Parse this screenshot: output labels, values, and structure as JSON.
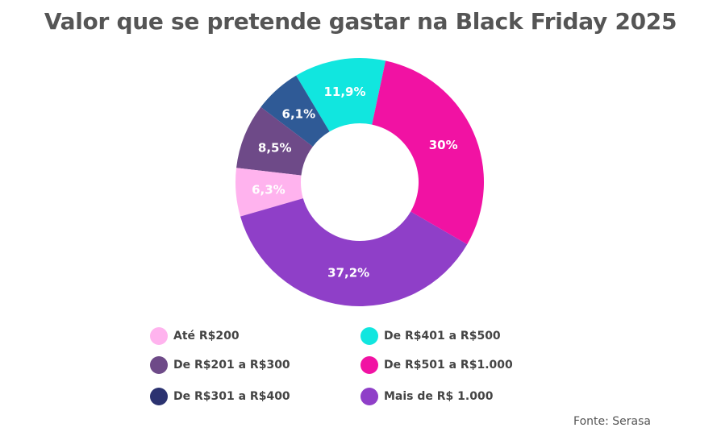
{
  "chart_data": {
    "type": "pie",
    "subtype": "donut",
    "title": "Valor que se pretende gastar na Black Friday 2025",
    "categories": [
      "Até R$200",
      "De R$201 a R$300",
      "De R$301 a R$400",
      "De R$401 a R$500",
      "De R$501 a R$1.000",
      "Mais de R$ 1.000"
    ],
    "values": [
      6.3,
      8.5,
      6.1,
      11.9,
      30,
      37.2
    ],
    "data_labels": [
      "6,3%",
      "8,5%",
      "6,1%",
      "11,9%",
      "30%",
      "37,2%"
    ],
    "colors": [
      "#ffb3ee",
      "#6e4a88",
      "#2f5a96",
      "#11e6df",
      "#f112a3",
      "#8f3fc8"
    ],
    "label_colors": [
      "#ffffff",
      "#ffffff",
      "#ffffff",
      "#ffffff",
      "#ffffff",
      "#ffffff"
    ],
    "legend": {
      "placement": "bottom",
      "items": [
        {
          "label": "Até R$200",
          "color": "#ffb3ee"
        },
        {
          "label": "De R$401 a R$500",
          "color": "#11e6df"
        },
        {
          "label": "De R$201 a R$300",
          "color": "#6e4a88"
        },
        {
          "label": "De R$501 a R$1.000",
          "color": "#f112a3"
        },
        {
          "label": "De R$301 a R$400",
          "color": "#2b3270"
        },
        {
          "label": "Mais de R$ 1.000",
          "color": "#8f3fc8"
        }
      ]
    }
  },
  "source": "Fonte: Serasa"
}
